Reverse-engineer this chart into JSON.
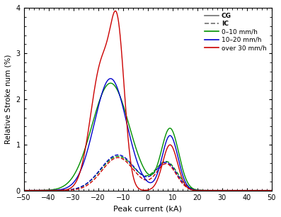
{
  "xlabel": "Peak current (kA)",
  "ylabel": "Relative Stroke num (%)",
  "xlim": [
    -50,
    50
  ],
  "ylim": [
    0,
    4
  ],
  "xticks": [
    -50,
    -40,
    -30,
    -20,
    -10,
    0,
    10,
    20,
    30,
    40,
    50
  ],
  "yticks": [
    0,
    1,
    2,
    3,
    4
  ],
  "colors": {
    "green": "#009000",
    "blue": "#0000CC",
    "red": "#CC0000",
    "gray": "#707070"
  },
  "legend": {
    "CG_label": "CG",
    "IC_label": "IC",
    "green_label": "0–10 mm/h",
    "blue_label": "10–20 mm/h",
    "red_label": "over 30 mm/h"
  },
  "curves": {
    "cg_green_neg": {
      "peaks": [
        {
          "mean": -15.0,
          "std": 7.5,
          "amp": 2.35
        }
      ]
    },
    "cg_blue_neg": {
      "peaks": [
        {
          "mean": -15.0,
          "std": 6.5,
          "amp": 2.45
        }
      ]
    },
    "cg_red_neg": {
      "peaks": [
        {
          "mean": -18.5,
          "std": 4.5,
          "amp": 2.75
        },
        {
          "mean": -12.0,
          "std": 2.8,
          "amp": 2.8
        }
      ]
    },
    "cg_green_pos": {
      "peaks": [
        {
          "mean": 9.0,
          "std": 3.5,
          "amp": 1.35
        }
      ]
    },
    "cg_blue_pos": {
      "peaks": [
        {
          "mean": 9.0,
          "std": 3.2,
          "amp": 1.2
        }
      ]
    },
    "cg_red_pos": {
      "peaks": [
        {
          "mean": 9.0,
          "std": 3.0,
          "amp": 1.0
        }
      ]
    },
    "ic_green_neg": {
      "peaks": [
        {
          "mean": -12.0,
          "std": 7.0,
          "amp": 0.75
        }
      ]
    },
    "ic_blue_neg": {
      "peaks": [
        {
          "mean": -12.0,
          "std": 7.0,
          "amp": 0.78
        }
      ]
    },
    "ic_red_neg": {
      "peaks": [
        {
          "mean": -12.0,
          "std": 6.5,
          "amp": 0.72
        }
      ]
    },
    "ic_green_pos": {
      "peaks": [
        {
          "mean": 7.5,
          "std": 4.5,
          "amp": 0.62
        }
      ]
    },
    "ic_blue_pos": {
      "peaks": [
        {
          "mean": 7.5,
          "std": 4.2,
          "amp": 0.6
        }
      ]
    },
    "ic_red_pos": {
      "peaks": [
        {
          "mean": 7.5,
          "std": 4.0,
          "amp": 0.58
        }
      ]
    }
  }
}
